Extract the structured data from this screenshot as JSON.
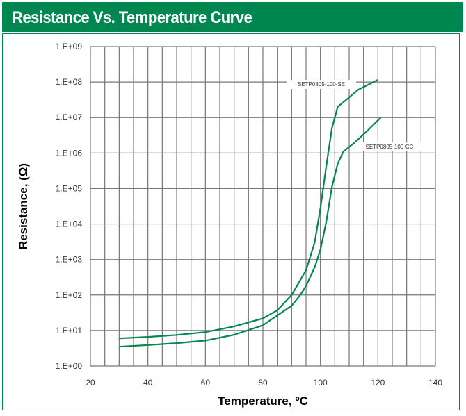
{
  "header": {
    "title": "Resistance Vs. Temperature Curve"
  },
  "colors": {
    "header_bg": "#00874f",
    "curve": "#00874f",
    "grid": "#777777"
  },
  "chart_data": {
    "type": "line",
    "title": "Resistance Vs. Temperature Curve",
    "xlabel": "Temperature, ºC",
    "ylabel": "Resistance, (Ω)",
    "xlim": [
      20,
      140
    ],
    "ylim": [
      1,
      1000000000
    ],
    "yscale": "log",
    "grid": true,
    "x_ticks": [
      "20",
      "40",
      "60",
      "80",
      "100",
      "120",
      "140"
    ],
    "y_ticks": [
      "1.E+00",
      "1.E+01",
      "1.E+02",
      "1.E+03",
      "1.E+04",
      "1.E+05",
      "1.E+06",
      "1.E+07",
      "1.E+08",
      "1.E+09"
    ],
    "series": [
      {
        "name": "SETP0805-100-SE",
        "points": [
          [
            30,
            6
          ],
          [
            40,
            6.6
          ],
          [
            50,
            7.5
          ],
          [
            60,
            9
          ],
          [
            70,
            13
          ],
          [
            80,
            22
          ],
          [
            85,
            37
          ],
          [
            90,
            100
          ],
          [
            95,
            500
          ],
          [
            98,
            3000
          ],
          [
            100,
            28000
          ],
          [
            102,
            400000
          ],
          [
            104,
            5000000
          ],
          [
            106,
            20000000
          ],
          [
            110,
            37000000
          ],
          [
            113,
            60000000
          ],
          [
            120,
            115000000
          ]
        ]
      },
      {
        "name": "SETP0805-100-CC",
        "points": [
          [
            30,
            3.5
          ],
          [
            40,
            3.9
          ],
          [
            50,
            4.4
          ],
          [
            60,
            5.2
          ],
          [
            70,
            7.6
          ],
          [
            80,
            14
          ],
          [
            90,
            50
          ],
          [
            93,
            100
          ],
          [
            95,
            180
          ],
          [
            98,
            600
          ],
          [
            100,
            1900
          ],
          [
            102,
            11000
          ],
          [
            104,
            110000
          ],
          [
            106,
            500000
          ],
          [
            108,
            1100000
          ],
          [
            112,
            2000000
          ],
          [
            116,
            4000000
          ],
          [
            121,
            10000000
          ]
        ]
      }
    ]
  }
}
